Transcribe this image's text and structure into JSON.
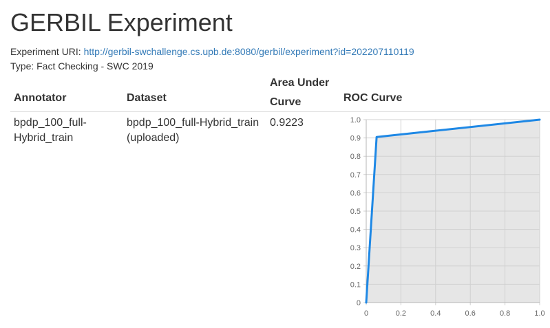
{
  "page": {
    "title": "GERBIL Experiment",
    "uri_label": "Experiment URI:",
    "uri": "http://gerbil-swchallenge.cs.upb.de:8080/gerbil/experiment?id=202207110119",
    "type_text": "Type: Fact Checking - SWC 2019"
  },
  "table": {
    "headers": {
      "annotator": "Annotator",
      "dataset": "Dataset",
      "auc_line1": "Area Under",
      "auc_line2": "Curve",
      "roc": "ROC Curve"
    },
    "rows": [
      {
        "annotator_line1": "bpdp_100_full-",
        "annotator_line2": "Hybrid_train",
        "dataset_line1": "bpdp_100_full-Hybrid_train",
        "dataset_line2": "(uploaded)",
        "auc": "0.9223"
      }
    ]
  },
  "chart_data": {
    "type": "area",
    "x": [
      0,
      0.06,
      1
    ],
    "y": [
      0,
      0.905,
      1
    ],
    "xlim": [
      0,
      1
    ],
    "ylim": [
      0,
      1
    ],
    "xticks": [
      "0",
      "0.2",
      "0.4",
      "0.6",
      "0.8",
      "1.0"
    ],
    "yticks": [
      "0",
      "0.1",
      "0.2",
      "0.3",
      "0.4",
      "0.5",
      "0.6",
      "0.7",
      "0.8",
      "0.9",
      "1.0"
    ],
    "grid": true,
    "line_color": "#1e88e5",
    "fill_color": "#e6e6e6"
  }
}
